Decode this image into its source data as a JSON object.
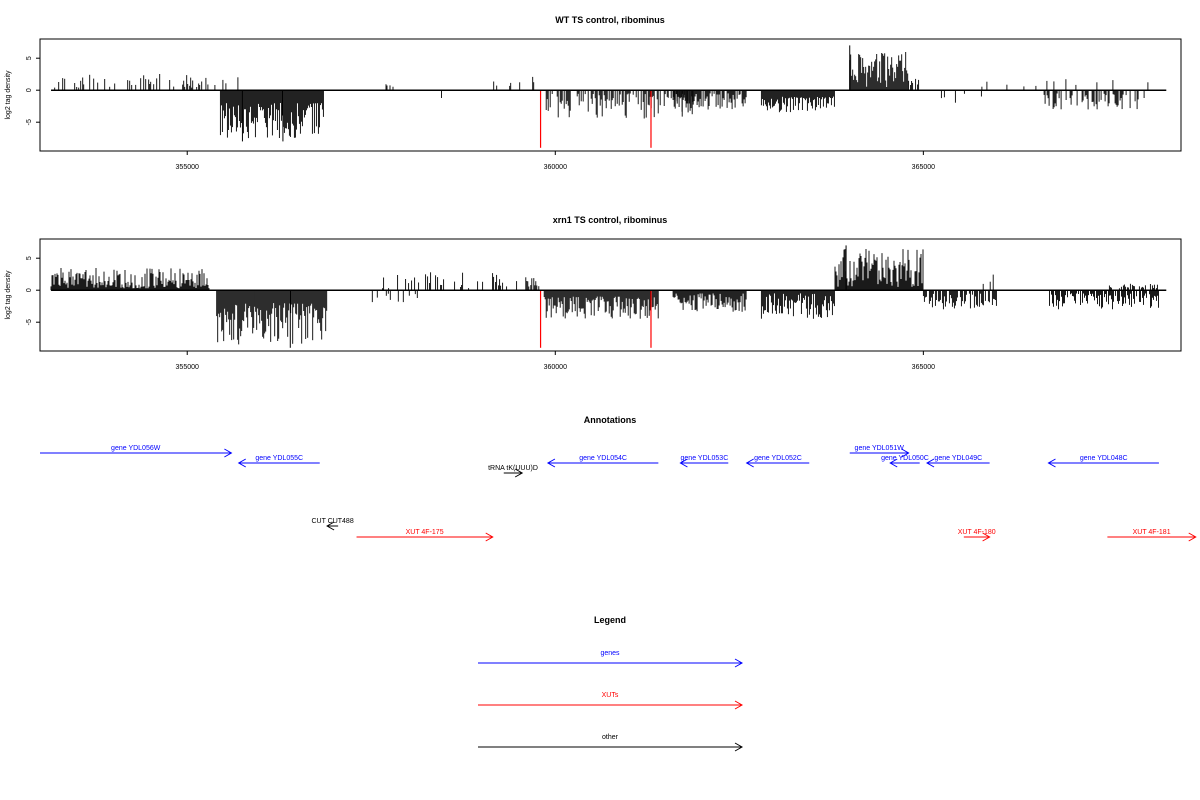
{
  "colors": {
    "axis": "#000000",
    "signal": "#000000",
    "highlight": "#ff0000",
    "genes": "#0000ff",
    "xuts": "#ff0000",
    "other": "#000000"
  },
  "chart_data": [
    {
      "type": "bar",
      "title": "WT TS control, ribominus",
      "xlabel": "",
      "ylabel": "log2 tag density",
      "xlim": [
        353000,
        368500
      ],
      "ylim": [
        -9.5,
        8
      ],
      "xticks": [
        355000,
        360000,
        365000
      ],
      "xtick_labels": [
        "355000",
        "360000",
        "365000"
      ],
      "yticks": [
        -5,
        0,
        5
      ],
      "ytick_labels": [
        "-5",
        "0",
        "5"
      ],
      "grid": false,
      "baseline": [
        353150,
        368300
      ],
      "pos_clusters": [
        {
          "start": 353200,
          "end": 355200,
          "density": 0.35,
          "min": 0.4,
          "max": 2.6
        },
        {
          "start": 355200,
          "end": 355700,
          "density": 0.3,
          "min": 0.5,
          "max": 3.0
        },
        {
          "start": 357700,
          "end": 357800,
          "density": 0.5,
          "min": 0.5,
          "max": 1.0
        },
        {
          "start": 359000,
          "end": 359800,
          "density": 0.15,
          "min": 0.5,
          "max": 2.5
        },
        {
          "start": 364000,
          "end": 364800,
          "density": 1.5,
          "min": 0.5,
          "max": 6.0
        },
        {
          "start": 364800,
          "end": 365000,
          "density": 0.5,
          "min": 0.5,
          "max": 2.5
        },
        {
          "start": 365700,
          "end": 368200,
          "density": 0.08,
          "min": 0.5,
          "max": 2.0
        }
      ],
      "neg_clusters": [
        {
          "start": 355450,
          "end": 356850,
          "density": 2.5,
          "min": 2.0,
          "max": 7.5
        },
        {
          "start": 358400,
          "end": 358600,
          "density": 0.15,
          "min": 0.5,
          "max": 2.0
        },
        {
          "start": 359850,
          "end": 361900,
          "density": 0.5,
          "min": 0.5,
          "max": 4.5
        },
        {
          "start": 361600,
          "end": 362600,
          "density": 0.8,
          "min": 0.5,
          "max": 3.5
        },
        {
          "start": 362800,
          "end": 363800,
          "density": 1.2,
          "min": 1.0,
          "max": 3.5
        },
        {
          "start": 365000,
          "end": 365800,
          "density": 0.12,
          "min": 0.5,
          "max": 2.0
        },
        {
          "start": 366600,
          "end": 368000,
          "density": 0.5,
          "min": 0.5,
          "max": 3.0
        }
      ],
      "spikes": [
        {
          "x": 364000,
          "y": 7.0
        },
        {
          "x": 355750,
          "y": -8.0
        },
        {
          "x": 356300,
          "y": -8.0
        }
      ],
      "red_spikes": [
        {
          "x": 359800,
          "y": -9.0
        },
        {
          "x": 361300,
          "y": -9.0
        }
      ],
      "seed": 12345
    },
    {
      "type": "bar",
      "title": "xrn1 TS control, ribominus",
      "xlabel": "",
      "ylabel": "log2 tag density",
      "xlim": [
        353000,
        368500
      ],
      "ylim": [
        -9.5,
        8
      ],
      "xticks": [
        355000,
        360000,
        365000
      ],
      "xtick_labels": [
        "355000",
        "360000",
        "365000"
      ],
      "yticks": [
        -5,
        0,
        5
      ],
      "ytick_labels": [
        "-5",
        "0",
        "5"
      ],
      "grid": false,
      "baseline": [
        353150,
        368300
      ],
      "pos_clusters": [
        {
          "start": 353150,
          "end": 355300,
          "density": 1.2,
          "min": 0.3,
          "max": 3.5
        },
        {
          "start": 357600,
          "end": 359500,
          "density": 0.3,
          "min": 0.3,
          "max": 3.0
        },
        {
          "start": 359600,
          "end": 359800,
          "density": 0.5,
          "min": 0.5,
          "max": 2.5
        },
        {
          "start": 363800,
          "end": 365000,
          "density": 2.0,
          "min": 0.5,
          "max": 6.5
        },
        {
          "start": 365800,
          "end": 366000,
          "density": 0.3,
          "min": 0.5,
          "max": 2.5
        },
        {
          "start": 367500,
          "end": 368200,
          "density": 0.5,
          "min": 0.3,
          "max": 1.0
        }
      ],
      "neg_clusters": [
        {
          "start": 355400,
          "end": 356900,
          "density": 3.0,
          "min": 2.0,
          "max": 8.5
        },
        {
          "start": 357500,
          "end": 358200,
          "density": 0.2,
          "min": 0.5,
          "max": 2.0
        },
        {
          "start": 359850,
          "end": 361400,
          "density": 2.0,
          "min": 1.0,
          "max": 4.5
        },
        {
          "start": 361600,
          "end": 362600,
          "density": 1.5,
          "min": 0.5,
          "max": 3.5
        },
        {
          "start": 362800,
          "end": 363800,
          "density": 1.5,
          "min": 0.5,
          "max": 4.5
        },
        {
          "start": 365000,
          "end": 366000,
          "density": 0.8,
          "min": 0.5,
          "max": 3.0
        },
        {
          "start": 366700,
          "end": 368200,
          "density": 0.8,
          "min": 0.5,
          "max": 3.0
        }
      ],
      "spikes": [
        {
          "x": 363950,
          "y": 7.0
        },
        {
          "x": 356400,
          "y": -9.0
        }
      ],
      "red_spikes": [
        {
          "x": 359800,
          "y": -9.0
        },
        {
          "x": 361300,
          "y": -9.0
        }
      ],
      "seed": 67890
    }
  ],
  "annotations": {
    "title": "Annotations",
    "features": [
      {
        "label": "gene YDL056W",
        "kind": "genes",
        "start": 353000,
        "end": 355600,
        "dir": "right",
        "row": 0
      },
      {
        "label": "gene YDL055C",
        "kind": "genes",
        "start": 355700,
        "end": 356800,
        "dir": "left",
        "row": 1
      },
      {
        "label": "tRNA tK(UUU)D",
        "kind": "other",
        "start": 359300,
        "end": 359550,
        "dir": "right",
        "row": 2
      },
      {
        "label": "gene YDL054C",
        "kind": "genes",
        "start": 359900,
        "end": 361400,
        "dir": "left",
        "row": 1
      },
      {
        "label": "gene YDL053C",
        "kind": "genes",
        "start": 361700,
        "end": 362350,
        "dir": "left",
        "row": 1
      },
      {
        "label": "gene YDL052C",
        "kind": "genes",
        "start": 362600,
        "end": 363450,
        "dir": "left",
        "row": 1
      },
      {
        "label": "gene YDL051W",
        "kind": "genes",
        "start": 364000,
        "end": 364800,
        "dir": "right",
        "row": 0
      },
      {
        "label": "gene YDL050C",
        "kind": "genes",
        "start": 364550,
        "end": 364950,
        "dir": "left",
        "row": 1
      },
      {
        "label": "gene YDL049C",
        "kind": "genes",
        "start": 365050,
        "end": 365900,
        "dir": "left",
        "row": 1
      },
      {
        "label": "gene YDL048C",
        "kind": "genes",
        "start": 366700,
        "end": 368200,
        "dir": "left",
        "row": 1
      },
      {
        "label": "CUT CUT488",
        "kind": "other",
        "start": 356900,
        "end": 357050,
        "dir": "left",
        "row": 3
      },
      {
        "label": "XUT 4F-175",
        "kind": "xuts",
        "start": 357300,
        "end": 359150,
        "dir": "right",
        "row": 4
      },
      {
        "label": "XUT 4F-180",
        "kind": "xuts",
        "start": 365550,
        "end": 365900,
        "dir": "right",
        "row": 4
      },
      {
        "label": "XUT 4F-181",
        "kind": "xuts",
        "start": 367500,
        "end": 368700,
        "dir": "right",
        "row": 4
      }
    ]
  },
  "legend": {
    "title": "Legend",
    "items": [
      {
        "label": "genes",
        "kind": "genes"
      },
      {
        "label": "XUTs",
        "kind": "xuts"
      },
      {
        "label": "other",
        "kind": "other"
      }
    ]
  }
}
